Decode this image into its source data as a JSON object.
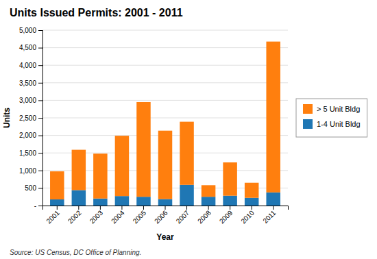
{
  "chart_data": {
    "type": "bar",
    "title": "Units Issued Permits: 2001 - 2011",
    "xlabel": "Year",
    "ylabel": "Units",
    "annotations": [
      "Source: US Census, DC Office of Planning."
    ],
    "categories": [
      "2001",
      "2002",
      "2003",
      "2004",
      "2005",
      "2006",
      "2007",
      "2008",
      "2009",
      "2010",
      "2011"
    ],
    "series": [
      {
        "name": "1-4 Unit Bldg",
        "values": [
          175,
          440,
          200,
          270,
          250,
          185,
          590,
          250,
          280,
          220,
          375
        ]
      },
      {
        "name": "> 5 Unit Bldg",
        "values": [
          800,
          1150,
          1280,
          1720,
          2700,
          1950,
          1800,
          330,
          950,
          430,
          4300
        ]
      }
    ],
    "stacked": true,
    "ylim": [
      0,
      5000
    ],
    "yticks": [
      {
        "value": 0,
        "label": "-"
      },
      500,
      {
        "value": 1000,
        "label": "1,000"
      },
      {
        "value": 1500,
        "label": "1,500"
      },
      {
        "value": 2000,
        "label": "2,000"
      },
      {
        "value": 2500,
        "label": "2,500"
      },
      {
        "value": 3000,
        "label": "3,000"
      },
      {
        "value": 3500,
        "label": "3,500"
      },
      {
        "value": 4000,
        "label": "4,000"
      },
      {
        "value": 4500,
        "label": "4,500"
      },
      {
        "value": 5000,
        "label": "5,000"
      }
    ],
    "grid": true,
    "legend": "right"
  }
}
